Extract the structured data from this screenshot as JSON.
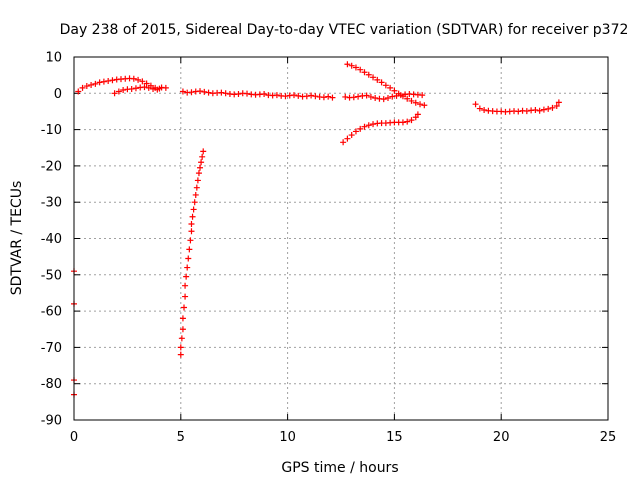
{
  "chart_data": {
    "type": "scatter",
    "title": "Day 238 of 2015, Sidereal Day-to-day VTEC variation (SDTVAR) for receiver p372",
    "xlabel": "GPS time / hours",
    "ylabel": "SDTVAR / TECUs",
    "xlim": [
      0,
      25
    ],
    "ylim": [
      -90,
      10
    ],
    "xticks": [
      0,
      5,
      10,
      15,
      20,
      25
    ],
    "yticks": [
      10,
      0,
      -10,
      -20,
      -30,
      -40,
      -50,
      -60,
      -70,
      -80,
      -90
    ],
    "grid": true,
    "marker": "plus",
    "color": "#ff0000",
    "series": [
      {
        "points": [
          [
            0.2,
            0.5
          ],
          [
            0.4,
            1.5
          ],
          [
            0.6,
            2.0
          ],
          [
            0.8,
            2.3
          ],
          [
            1.0,
            2.6
          ],
          [
            1.2,
            3.0
          ],
          [
            1.4,
            3.2
          ],
          [
            1.6,
            3.4
          ],
          [
            1.8,
            3.6
          ],
          [
            2.0,
            3.8
          ],
          [
            2.2,
            3.9
          ],
          [
            2.4,
            4.0
          ],
          [
            2.6,
            4.1
          ],
          [
            2.8,
            4.0
          ],
          [
            3.0,
            3.7
          ],
          [
            3.2,
            3.3
          ],
          [
            3.4,
            2.7
          ],
          [
            3.6,
            2.1
          ],
          [
            3.8,
            1.5
          ],
          [
            4.0,
            1.3
          ],
          [
            4.3,
            1.5
          ],
          [
            1.9,
            0.0
          ],
          [
            2.1,
            0.5
          ],
          [
            2.3,
            0.9
          ],
          [
            2.5,
            1.1
          ],
          [
            2.7,
            1.2
          ],
          [
            2.9,
            1.4
          ],
          [
            3.1,
            1.6
          ],
          [
            3.3,
            1.7
          ],
          [
            3.5,
            1.5
          ],
          [
            3.7,
            1.2
          ],
          [
            3.9,
            1.0
          ],
          [
            4.1,
            1.6
          ],
          [
            5.1,
            0.5
          ],
          [
            5.3,
            0.2
          ],
          [
            5.5,
            0.3
          ],
          [
            5.7,
            0.5
          ],
          [
            5.9,
            0.6
          ],
          [
            6.1,
            0.4
          ],
          [
            6.3,
            0.2
          ],
          [
            6.5,
            0.0
          ],
          [
            6.7,
            0.1
          ],
          [
            6.9,
            0.2
          ],
          [
            7.1,
            0.0
          ],
          [
            7.3,
            -0.2
          ],
          [
            7.5,
            -0.3
          ],
          [
            7.7,
            -0.2
          ],
          [
            7.9,
            0.0
          ],
          [
            8.1,
            -0.1
          ],
          [
            8.3,
            -0.3
          ],
          [
            8.5,
            -0.4
          ],
          [
            8.7,
            -0.3
          ],
          [
            8.9,
            -0.2
          ],
          [
            9.1,
            -0.5
          ],
          [
            9.3,
            -0.6
          ],
          [
            9.5,
            -0.5
          ],
          [
            9.7,
            -0.7
          ],
          [
            9.9,
            -0.8
          ],
          [
            10.1,
            -0.6
          ],
          [
            10.3,
            -0.5
          ],
          [
            10.5,
            -0.7
          ],
          [
            10.7,
            -0.9
          ],
          [
            10.9,
            -0.8
          ],
          [
            11.1,
            -0.6
          ],
          [
            11.3,
            -0.8
          ],
          [
            11.5,
            -1.0
          ],
          [
            11.7,
            -1.1
          ],
          [
            11.9,
            -0.9
          ],
          [
            12.1,
            -1.2
          ],
          [
            5.0,
            -72.0
          ],
          [
            5.0,
            -70.0
          ],
          [
            5.05,
            -67.5
          ],
          [
            5.1,
            -65.0
          ],
          [
            5.1,
            -62.0
          ],
          [
            5.15,
            -59.0
          ],
          [
            5.2,
            -56.0
          ],
          [
            5.2,
            -53.0
          ],
          [
            5.25,
            -50.5
          ],
          [
            5.3,
            -48.0
          ],
          [
            5.35,
            -45.5
          ],
          [
            5.4,
            -43.0
          ],
          [
            5.45,
            -40.5
          ],
          [
            5.5,
            -38.0
          ],
          [
            5.5,
            -36.0
          ],
          [
            5.55,
            -34.0
          ],
          [
            5.6,
            -32.0
          ],
          [
            5.65,
            -30.0
          ],
          [
            5.7,
            -28.0
          ],
          [
            5.75,
            -26.0
          ],
          [
            5.8,
            -24.0
          ],
          [
            5.85,
            -22.0
          ],
          [
            5.9,
            -20.5
          ],
          [
            5.95,
            -19.0
          ],
          [
            6.0,
            -17.5
          ],
          [
            6.05,
            -16.0
          ],
          [
            12.6,
            -13.5
          ],
          [
            12.8,
            -12.5
          ],
          [
            13.0,
            -11.5
          ],
          [
            13.2,
            -10.5
          ],
          [
            13.4,
            -9.8
          ],
          [
            13.6,
            -9.2
          ],
          [
            13.8,
            -8.8
          ],
          [
            14.0,
            -8.5
          ],
          [
            14.2,
            -8.3
          ],
          [
            14.4,
            -8.2
          ],
          [
            14.6,
            -8.2
          ],
          [
            14.8,
            -8.1
          ],
          [
            15.0,
            -8.0
          ],
          [
            15.2,
            -8.0
          ],
          [
            15.4,
            -8.0
          ],
          [
            15.6,
            -7.8
          ],
          [
            15.8,
            -7.4
          ],
          [
            16.0,
            -6.6
          ],
          [
            16.1,
            -5.8
          ],
          [
            12.8,
            8.0
          ],
          [
            13.0,
            7.6
          ],
          [
            13.2,
            7.1
          ],
          [
            13.4,
            6.5
          ],
          [
            13.6,
            5.8
          ],
          [
            13.8,
            5.1
          ],
          [
            14.0,
            4.4
          ],
          [
            14.2,
            3.7
          ],
          [
            14.4,
            3.0
          ],
          [
            14.6,
            2.2
          ],
          [
            14.8,
            1.5
          ],
          [
            15.0,
            0.7
          ],
          [
            15.2,
            -0.1
          ],
          [
            15.4,
            -0.8
          ],
          [
            15.6,
            -1.5
          ],
          [
            15.8,
            -2.1
          ],
          [
            16.0,
            -2.6
          ],
          [
            16.2,
            -3.0
          ],
          [
            16.4,
            -3.3
          ],
          [
            12.7,
            -1.0
          ],
          [
            12.9,
            -1.2
          ],
          [
            13.1,
            -1.1
          ],
          [
            13.3,
            -0.9
          ],
          [
            13.5,
            -0.7
          ],
          [
            13.7,
            -0.6
          ],
          [
            13.9,
            -1.0
          ],
          [
            14.1,
            -1.3
          ],
          [
            14.3,
            -1.5
          ],
          [
            14.5,
            -1.6
          ],
          [
            14.7,
            -1.3
          ],
          [
            14.9,
            -0.9
          ],
          [
            15.1,
            -0.7
          ],
          [
            15.3,
            -0.5
          ],
          [
            15.5,
            -0.3
          ],
          [
            15.7,
            -0.2
          ],
          [
            15.9,
            -0.3
          ],
          [
            16.1,
            -0.4
          ],
          [
            16.3,
            -0.5
          ],
          [
            18.8,
            -3.0
          ],
          [
            19.0,
            -4.2
          ],
          [
            19.2,
            -4.6
          ],
          [
            19.4,
            -4.8
          ],
          [
            19.6,
            -4.9
          ],
          [
            19.8,
            -5.0
          ],
          [
            20.0,
            -5.0
          ],
          [
            20.2,
            -5.1
          ],
          [
            20.4,
            -5.0
          ],
          [
            20.6,
            -4.9
          ],
          [
            20.8,
            -5.0
          ],
          [
            21.0,
            -4.8
          ],
          [
            21.2,
            -4.9
          ],
          [
            21.4,
            -4.7
          ],
          [
            21.6,
            -4.6
          ],
          [
            21.8,
            -4.8
          ],
          [
            22.0,
            -4.5
          ],
          [
            22.2,
            -4.3
          ],
          [
            22.4,
            -4.0
          ],
          [
            22.6,
            -3.5
          ],
          [
            22.7,
            -2.5
          ],
          [
            0.0,
            -49.0
          ],
          [
            0.0,
            -58.0
          ],
          [
            0.0,
            -79.0
          ],
          [
            0.0,
            -83.0
          ]
        ]
      }
    ]
  }
}
